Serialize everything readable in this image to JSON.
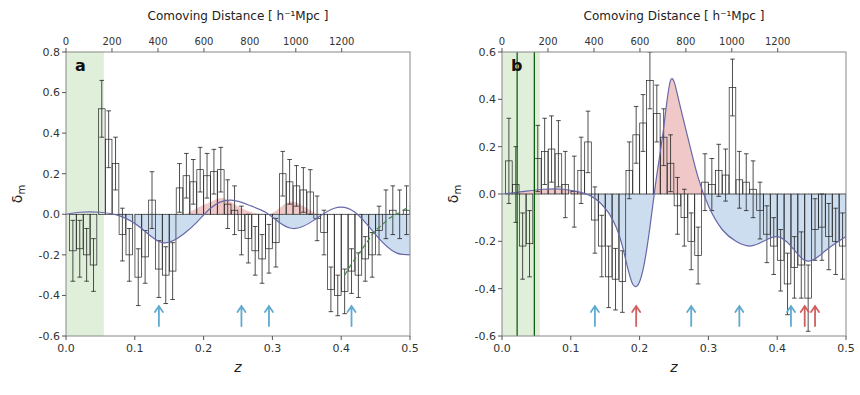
{
  "chart_data": [
    {
      "type": "bar",
      "title": "a",
      "x_label": "z",
      "y_label": "δm",
      "top_x_label": "Comoving Distance [ h⁻¹Mpc ]",
      "xlim": [
        0.0,
        0.5
      ],
      "ylim": [
        -0.6,
        0.8
      ],
      "xticks": [
        {
          "value": 0.0,
          "label": "0.0"
        },
        0.1,
        0.2,
        0.3,
        0.4,
        0.5
      ],
      "yticks": [
        -0.6,
        -0.4,
        -0.2,
        {
          "value": 0.0,
          "label": "0.0"
        },
        0.2,
        0.4,
        0.6,
        0.8
      ],
      "top_xticks": [
        {
          "value": 0.0,
          "label": "0"
        },
        {
          "value": 0.0668,
          "label": "200"
        },
        {
          "value": 0.1337,
          "label": "400"
        },
        {
          "value": 0.2005,
          "label": "600"
        },
        {
          "value": 0.2673,
          "label": "800"
        },
        {
          "value": 0.334,
          "label": "1000"
        },
        {
          "value": 0.4007,
          "label": "1200"
        }
      ],
      "shaded_region": {
        "range": [
          0.0,
          0.055
        ],
        "color": "#e0efda"
      },
      "arrows": [
        {
          "color": "#60aad0",
          "x": [
            0.135,
            0.255,
            0.295,
            0.415
          ]
        }
      ],
      "series": [
        {
          "type": "bar",
          "x": [
            0.01,
            0.02,
            0.03,
            0.04,
            0.052,
            0.062,
            0.072,
            0.082,
            0.092,
            0.105,
            0.115,
            0.125,
            0.135,
            0.145,
            0.155,
            0.165,
            0.175,
            0.185,
            0.195,
            0.205,
            0.215,
            0.225,
            0.235,
            0.245,
            0.255,
            0.265,
            0.275,
            0.285,
            0.295,
            0.305,
            0.315,
            0.325,
            0.335,
            0.345,
            0.355,
            0.365,
            0.375,
            0.385,
            0.395,
            0.405,
            0.415,
            0.425,
            0.435,
            0.445,
            0.455,
            0.465,
            0.475,
            0.485,
            0.495
          ],
          "values": [
            -0.18,
            -0.17,
            -0.2,
            -0.25,
            0.52,
            0.37,
            0.25,
            -0.1,
            -0.2,
            -0.31,
            -0.21,
            0.07,
            -0.27,
            -0.3,
            -0.28,
            0.13,
            0.19,
            0.16,
            0.22,
            0.19,
            0.21,
            0.22,
            0.05,
            0.02,
            -0.08,
            -0.12,
            -0.18,
            -0.22,
            -0.17,
            -0.14,
            0.2,
            0.16,
            0.14,
            0.12,
            0.11,
            -0.02,
            -0.09,
            -0.37,
            -0.4,
            -0.38,
            -0.28,
            -0.3,
            -0.22,
            -0.2,
            -0.08,
            0.0,
            0.02,
            0.0,
            0.02
          ],
          "errors": [
            0.15,
            0.14,
            0.13,
            0.13,
            0.14,
            0.14,
            0.13,
            0.13,
            0.13,
            0.14,
            0.13,
            0.14,
            0.14,
            0.14,
            0.14,
            0.12,
            0.11,
            0.11,
            0.11,
            0.11,
            0.11,
            0.11,
            0.12,
            0.12,
            0.12,
            0.12,
            0.12,
            0.12,
            0.12,
            0.12,
            0.11,
            0.11,
            0.1,
            0.11,
            0.11,
            0.11,
            0.11,
            0.11,
            0.1,
            0.11,
            0.11,
            0.11,
            0.11,
            0.11,
            0.12,
            0.12,
            0.12,
            0.12,
            0.12
          ]
        },
        {
          "type": "line",
          "color": "#6868a8",
          "colors": [
            "#ccddf0"
          ],
          "x": [
            0.0,
            0.02,
            0.05,
            0.08,
            0.11,
            0.14,
            0.17,
            0.19,
            0.21,
            0.24,
            0.27,
            0.29,
            0.31,
            0.33,
            0.36,
            0.39,
            0.42,
            0.45,
            0.48,
            0.5
          ],
          "values": [
            0.0,
            0.01,
            0.01,
            -0.01,
            -0.07,
            -0.14,
            -0.1,
            -0.04,
            0.03,
            0.07,
            0.04,
            0.01,
            -0.04,
            -0.07,
            -0.03,
            0.03,
            0.01,
            -0.1,
            -0.19,
            -0.2
          ]
        },
        {
          "type": "area",
          "color": "#f0c8c8",
          "x": [
            0.175,
            0.19,
            0.21,
            0.225,
            0.24,
            0.255,
            0.27,
            0.285,
            0.295,
            0.31,
            0.325,
            0.34,
            0.355,
            0.365
          ],
          "values": [
            0.0,
            0.03,
            0.06,
            0.08,
            0.06,
            0.03,
            0.01,
            0.0,
            0.0,
            0.03,
            0.06,
            0.05,
            0.02,
            0.0
          ]
        },
        {
          "type": "line",
          "color": "#448844",
          "line_style": "dashed",
          "x": [
            0.405,
            0.42,
            0.435,
            0.45,
            0.46,
            0.47,
            0.48,
            0.49,
            0.5
          ],
          "values": [
            -0.3,
            -0.22,
            -0.15,
            -0.08,
            -0.05,
            -0.02,
            0.0,
            0.02,
            0.04
          ]
        }
      ]
    },
    {
      "type": "bar",
      "title": "b",
      "x_label": "z",
      "y_label": "δm",
      "top_x_label": "Comoving Distance [ h⁻¹Mpc ]",
      "xlim": [
        0.0,
        0.5
      ],
      "ylim": [
        -0.6,
        0.6
      ],
      "xticks": [
        {
          "value": 0.0,
          "label": "0.0"
        },
        0.1,
        0.2,
        0.3,
        0.4,
        0.5
      ],
      "yticks": [
        -0.6,
        -0.4,
        -0.2,
        {
          "value": 0.0,
          "label": "0.0"
        },
        0.2,
        0.4,
        0.6
      ],
      "top_xticks": [
        {
          "value": 0.0,
          "label": "0"
        },
        {
          "value": 0.0668,
          "label": "200"
        },
        {
          "value": 0.1337,
          "label": "400"
        },
        {
          "value": 0.2005,
          "label": "600"
        },
        {
          "value": 0.2673,
          "label": "800"
        },
        {
          "value": 0.334,
          "label": "1000"
        },
        {
          "value": 0.4007,
          "label": "1200"
        }
      ],
      "shaded_region": {
        "range": [
          0.0,
          0.055
        ],
        "color": "#e0efda"
      },
      "vertical_lines": {
        "x": [
          0.022,
          0.047
        ],
        "color": "#005500"
      },
      "arrows": [
        {
          "color": "#60aad0",
          "x": [
            0.135,
            0.275,
            0.345,
            0.42
          ]
        },
        {
          "color": "#d06060",
          "x": [
            0.195,
            0.44,
            0.455
          ]
        }
      ],
      "series": [
        {
          "type": "bar",
          "x": [
            0.01,
            0.02,
            0.03,
            0.04,
            0.052,
            0.062,
            0.072,
            0.082,
            0.092,
            0.105,
            0.115,
            0.125,
            0.135,
            0.145,
            0.155,
            0.165,
            0.175,
            0.185,
            0.195,
            0.205,
            0.215,
            0.225,
            0.235,
            0.245,
            0.255,
            0.265,
            0.275,
            0.285,
            0.295,
            0.305,
            0.315,
            0.325,
            0.335,
            0.345,
            0.355,
            0.365,
            0.375,
            0.385,
            0.395,
            0.405,
            0.415,
            0.425,
            0.435,
            0.445,
            0.455,
            0.465,
            0.475,
            0.485,
            0.495
          ],
          "values": [
            0.14,
            0.04,
            -0.22,
            -0.21,
            0.15,
            0.18,
            0.19,
            0.17,
            0.04,
            0.01,
            0.1,
            0.22,
            -0.11,
            -0.22,
            -0.35,
            -0.36,
            -0.37,
            0.1,
            0.25,
            0.3,
            0.48,
            0.34,
            0.24,
            0.13,
            -0.05,
            -0.1,
            -0.2,
            -0.26,
            0.05,
            0.04,
            0.1,
            0.08,
            0.45,
            0.06,
            0.05,
            0.02,
            -0.07,
            -0.17,
            -0.22,
            -0.28,
            -0.38,
            -0.31,
            -0.3,
            -0.44,
            -0.15,
            -0.14,
            -0.18,
            -0.2,
            -0.22
          ],
          "errors": [
            0.18,
            0.16,
            0.14,
            0.14,
            0.14,
            0.14,
            0.14,
            0.14,
            0.14,
            0.15,
            0.14,
            0.13,
            0.14,
            0.13,
            0.13,
            0.13,
            0.13,
            0.12,
            0.12,
            0.12,
            0.12,
            0.12,
            0.12,
            0.12,
            0.12,
            0.12,
            0.12,
            0.12,
            0.12,
            0.11,
            0.11,
            0.11,
            0.12,
            0.12,
            0.12,
            0.12,
            0.12,
            0.12,
            0.12,
            0.13,
            0.13,
            0.13,
            0.14,
            0.14,
            0.13,
            0.14,
            0.14,
            0.14,
            0.14
          ]
        },
        {
          "type": "line",
          "color": "#6868a8",
          "colors": [
            "#ccddf0",
            "#f0c8c8"
          ],
          "x": [
            0.0,
            0.03,
            0.06,
            0.09,
            0.11,
            0.13,
            0.155,
            0.175,
            0.19,
            0.205,
            0.215,
            0.225,
            0.235,
            0.245,
            0.255,
            0.27,
            0.285,
            0.3,
            0.32,
            0.34,
            0.36,
            0.38,
            0.4,
            0.42,
            0.44,
            0.47,
            0.5
          ],
          "values": [
            0.0,
            0.01,
            0.02,
            0.02,
            0.01,
            -0.01,
            -0.08,
            -0.22,
            -0.38,
            -0.32,
            -0.14,
            0.08,
            0.28,
            0.48,
            0.42,
            0.24,
            0.07,
            -0.05,
            -0.15,
            -0.2,
            -0.22,
            -0.2,
            -0.18,
            -0.22,
            -0.28,
            -0.24,
            -0.18
          ]
        }
      ]
    }
  ]
}
